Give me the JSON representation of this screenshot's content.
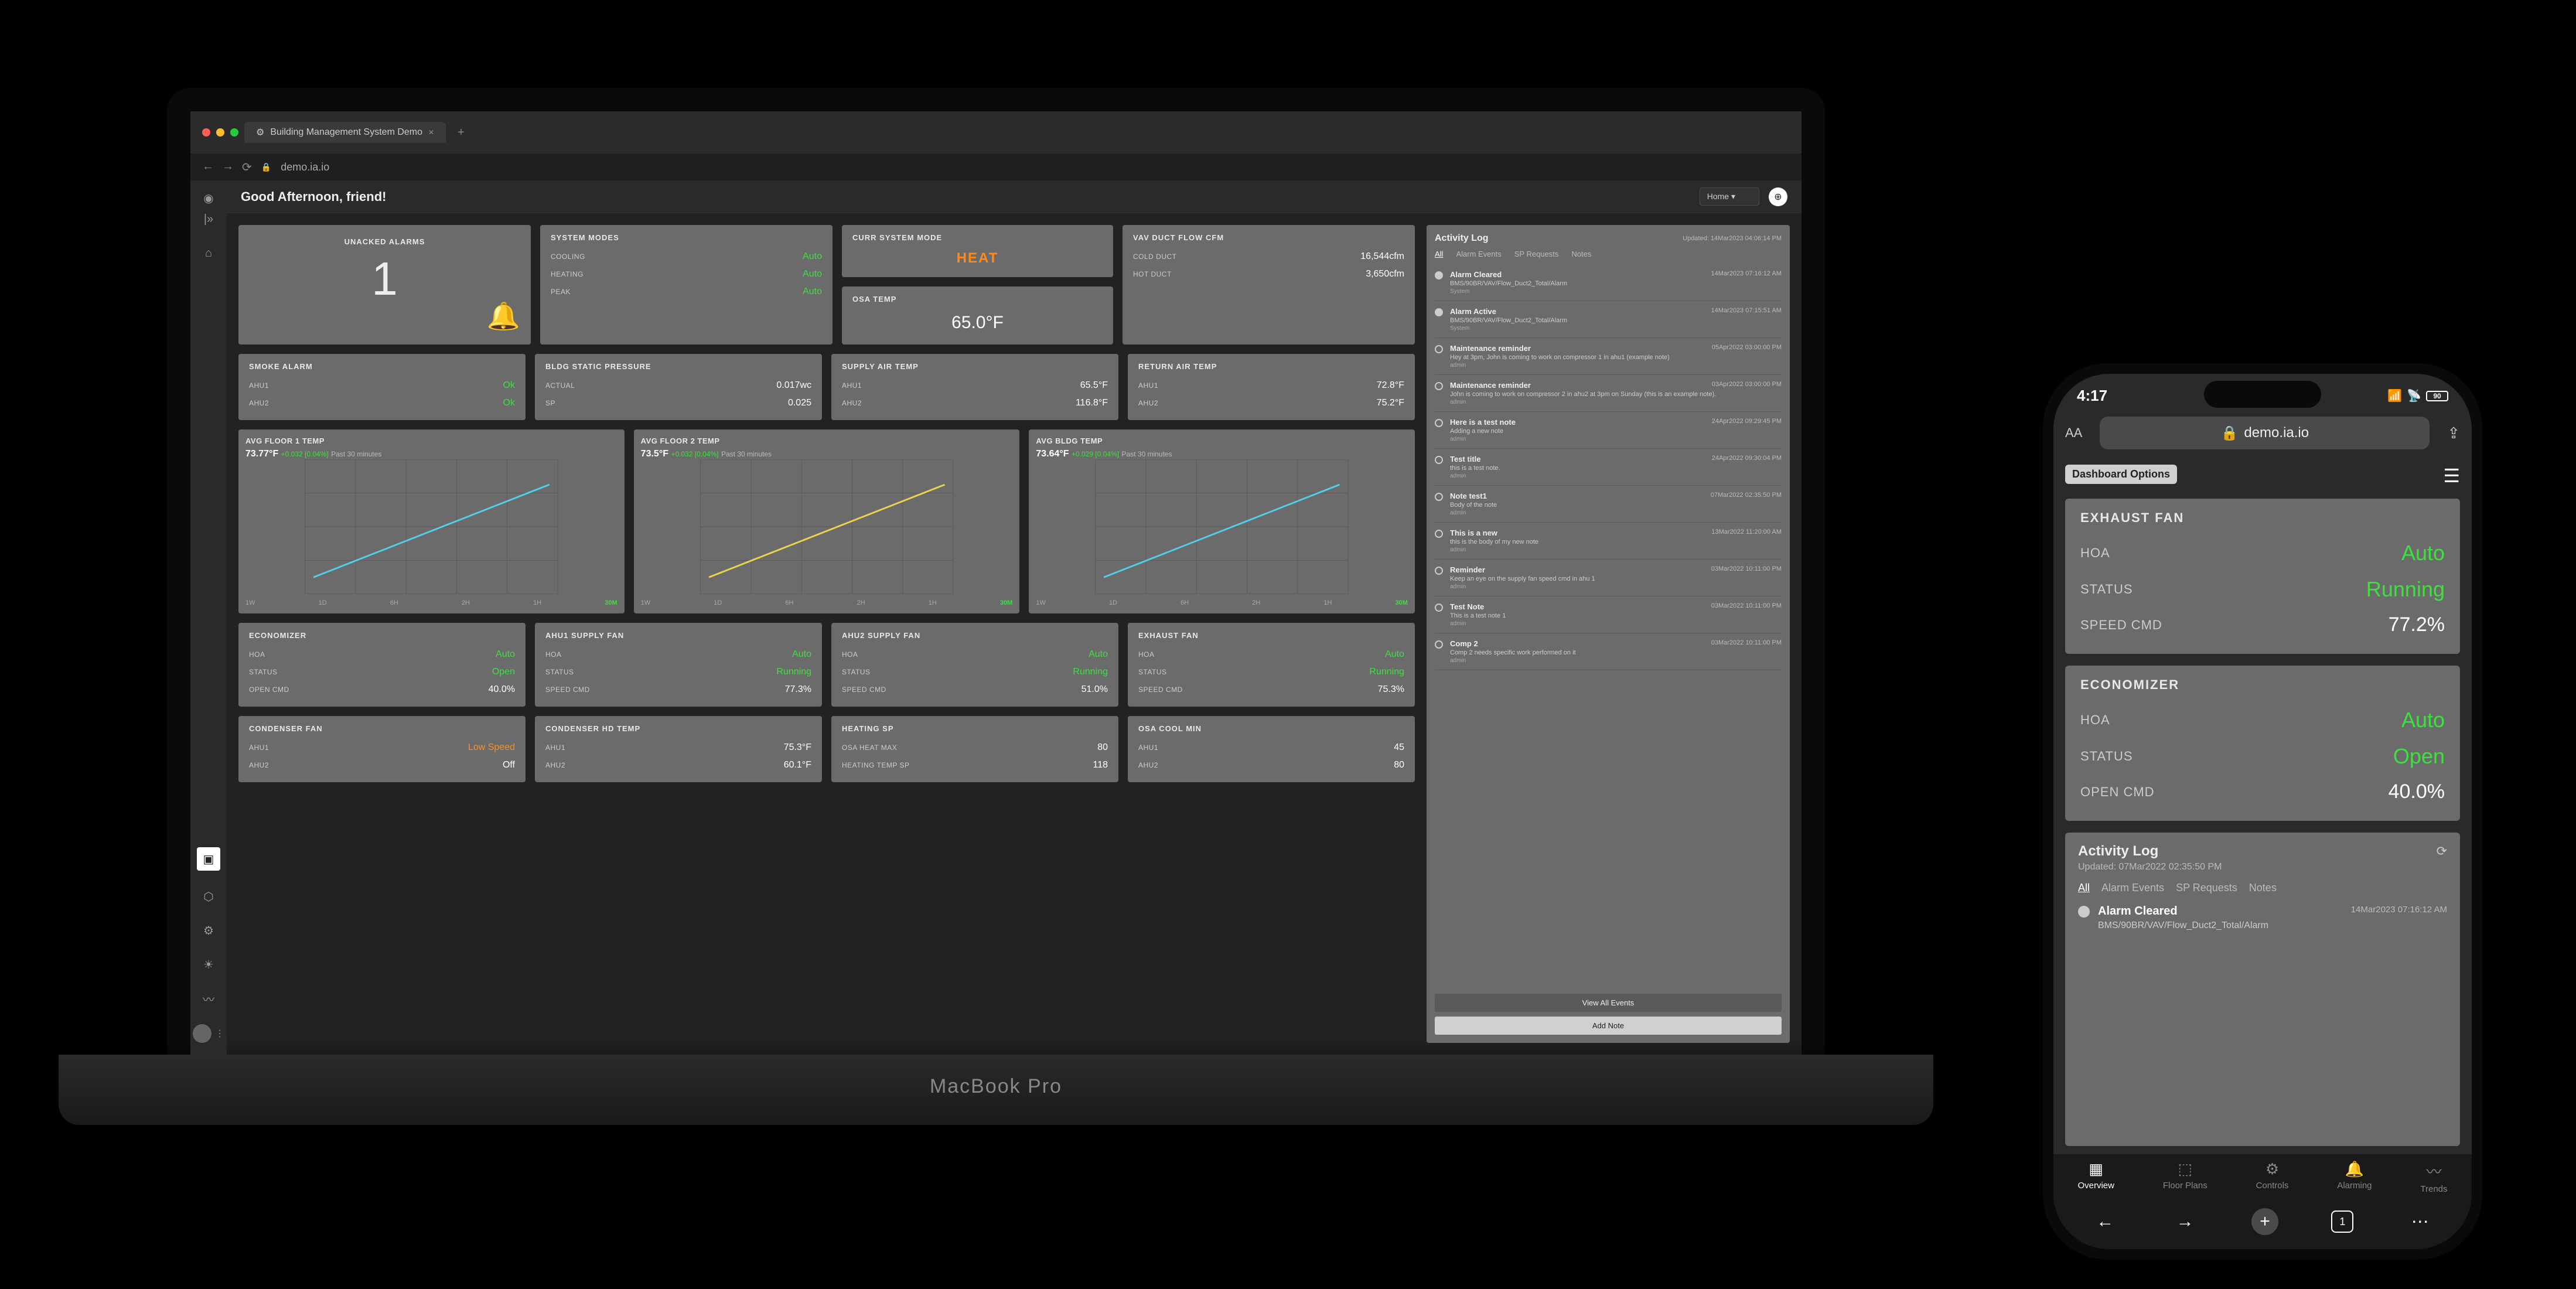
{
  "browser": {
    "tab_title": "Building Management System Demo",
    "url": "demo.ia.io"
  },
  "topbar": {
    "greeting": "Good Afternoon, friend!",
    "selector": "Home"
  },
  "unacked": {
    "title": "UNACKED ALARMS",
    "count": "1"
  },
  "system_modes": {
    "title": "SYSTEM MODES",
    "rows": [
      {
        "k": "COOLING",
        "v": "Auto"
      },
      {
        "k": "HEATING",
        "v": "Auto"
      },
      {
        "k": "PEAK",
        "v": "Auto"
      }
    ]
  },
  "curr_mode": {
    "title": "CURR SYSTEM MODE",
    "value": "HEAT"
  },
  "osa": {
    "title": "OSA TEMP",
    "value": "65.0°F"
  },
  "vav_cfm": {
    "title": "VAV DUCT FLOW CFM",
    "rows": [
      {
        "k": "COLD DUCT",
        "v": "16,544cfm"
      },
      {
        "k": "HOT DUCT",
        "v": "3,650cfm"
      }
    ]
  },
  "smoke": {
    "title": "SMOKE ALARM",
    "rows": [
      {
        "k": "AHU1",
        "v": "Ok"
      },
      {
        "k": "AHU2",
        "v": "Ok"
      }
    ]
  },
  "bldg_static": {
    "title": "BLDG STATIC PRESSURE",
    "rows": [
      {
        "k": "ACTUAL",
        "v": "0.017wc"
      },
      {
        "k": "SP",
        "v": "0.025"
      }
    ]
  },
  "supply_temp": {
    "title": "SUPPLY AIR TEMP",
    "rows": [
      {
        "k": "AHU1",
        "v": "65.5°F"
      },
      {
        "k": "AHU2",
        "v": "116.8°F"
      }
    ]
  },
  "return_temp": {
    "title": "RETURN AIR TEMP",
    "rows": [
      {
        "k": "AHU1",
        "v": "72.8°F"
      },
      {
        "k": "AHU2",
        "v": "75.2°F"
      }
    ]
  },
  "charts": [
    {
      "title": "AVG FLOOR 1 TEMP",
      "value": "73.77°F",
      "delta": "+0.032 [0.04%]",
      "sub": "Past 30 minutes",
      "type": "line",
      "color": "#4fcfe8",
      "grid_color": "#555",
      "bg": "#6b6b6b",
      "points": [
        [
          0,
          72
        ],
        [
          1,
          73.77
        ]
      ],
      "ylim": [
        60,
        80
      ],
      "xticks": [
        "1W",
        "1D",
        "6H",
        "2H",
        "1H",
        "30M"
      ],
      "active_tick": "30M"
    },
    {
      "title": "AVG FLOOR 2 TEMP",
      "value": "73.5°F",
      "delta": "+0.032 [0.04%]",
      "sub": "Past 30 minutes",
      "type": "line",
      "color": "#e8d44f",
      "grid_color": "#555",
      "bg": "#6b6b6b",
      "points": [
        [
          0,
          71.8
        ],
        [
          1,
          73.5
        ]
      ],
      "ylim": [
        60,
        80
      ],
      "xticks": [
        "1W",
        "1D",
        "6H",
        "2H",
        "1H",
        "30M"
      ],
      "active_tick": "30M"
    },
    {
      "title": "AVG BLDG TEMP",
      "value": "73.64°F",
      "delta": "+0.029 [0.04%]",
      "sub": "Past 30 minutes",
      "type": "line",
      "color": "#4fcfe8",
      "grid_color": "#555",
      "bg": "#6b6b6b",
      "points": [
        [
          0,
          72
        ],
        [
          1,
          73.64
        ]
      ],
      "ylim": [
        60,
        80
      ],
      "xticks": [
        "1W",
        "1D",
        "6H",
        "2H",
        "1H",
        "30M"
      ],
      "active_tick": "30M"
    }
  ],
  "economizer": {
    "title": "ECONOMIZER",
    "rows": [
      {
        "k": "HOA",
        "v": "Auto",
        "c": "green"
      },
      {
        "k": "STATUS",
        "v": "Open",
        "c": "green"
      },
      {
        "k": "OPEN CMD",
        "v": "40.0%",
        "c": "white"
      }
    ]
  },
  "ahu1_supply": {
    "title": "AHU1 SUPPLY FAN",
    "rows": [
      {
        "k": "HOA",
        "v": "Auto",
        "c": "green"
      },
      {
        "k": "STATUS",
        "v": "Running",
        "c": "green"
      },
      {
        "k": "SPEED CMD",
        "v": "77.3%",
        "c": "white"
      }
    ]
  },
  "ahu2_supply": {
    "title": "AHU2 SUPPLY FAN",
    "rows": [
      {
        "k": "HOA",
        "v": "Auto",
        "c": "green"
      },
      {
        "k": "STATUS",
        "v": "Running",
        "c": "green"
      },
      {
        "k": "SPEED CMD",
        "v": "51.0%",
        "c": "white"
      }
    ]
  },
  "exhaust": {
    "title": "EXHAUST FAN",
    "rows": [
      {
        "k": "HOA",
        "v": "Auto",
        "c": "green"
      },
      {
        "k": "STATUS",
        "v": "Running",
        "c": "green"
      },
      {
        "k": "SPEED CMD",
        "v": "75.3%",
        "c": "white"
      }
    ]
  },
  "condenser": {
    "title": "CONDENSER FAN",
    "rows": [
      {
        "k": "AHU1",
        "v": "Low Speed",
        "c": "orange"
      },
      {
        "k": "AHU2",
        "v": "Off",
        "c": "white"
      }
    ]
  },
  "condenser_hd": {
    "title": "CONDENSER HD TEMP",
    "rows": [
      {
        "k": "AHU1",
        "v": "75.3°F",
        "c": "white"
      },
      {
        "k": "AHU2",
        "v": "60.1°F",
        "c": "white"
      }
    ]
  },
  "heating_sp": {
    "title": "HEATING SP",
    "rows": [
      {
        "k": "OSA HEAT MAX",
        "v": "80",
        "c": "white"
      },
      {
        "k": "HEATING TEMP SP",
        "v": "118",
        "c": "white"
      }
    ]
  },
  "osa_cool": {
    "title": "OSA COOL MIN",
    "rows": [
      {
        "k": "AHU1",
        "v": "45",
        "c": "white"
      },
      {
        "k": "AHU2",
        "v": "80",
        "c": "white"
      }
    ]
  },
  "activity": {
    "title": "Activity Log",
    "updated": "Updated: 14Mar2023 04:06:14 PM",
    "tabs": [
      "All",
      "Alarm Events",
      "SP Requests",
      "Notes"
    ],
    "active_tab": "All",
    "items": [
      {
        "title": "Alarm Cleared",
        "time": "14Mar2023 07:16:12 AM",
        "sub": "BMS/90BR/VAV/Flow_Duct2_Total/Alarm",
        "author": "System",
        "filled": true
      },
      {
        "title": "Alarm Active",
        "time": "14Mar2023 07:15:51 AM",
        "sub": "BMS/90BR/VAV/Flow_Duct2_Total/Alarm",
        "author": "System",
        "filled": true
      },
      {
        "title": "Maintenance reminder",
        "time": "05Apr2022 03:00:00 PM",
        "sub": "Hey at 3pm, John is coming to work on compressor 1 in ahu1 (example note)",
        "author": "admin",
        "filled": false
      },
      {
        "title": "Maintenance reminder",
        "time": "03Apr2022 03:00:00 PM",
        "sub": "John is coming to work on compressor 2 in ahu2 at 3pm on Sunday (this is an example note).",
        "author": "admin",
        "filled": false
      },
      {
        "title": "Here is a test note",
        "time": "24Apr2022 09:29:45 PM",
        "sub": "Adding a new note",
        "author": "admin",
        "filled": false
      },
      {
        "title": "Test title",
        "time": "24Apr2022 09:30:04 PM",
        "sub": "this is a test note.",
        "author": "admin",
        "filled": false
      },
      {
        "title": "Note test1",
        "time": "07Mar2022 02:35:50 PM",
        "sub": "Body of the note",
        "author": "admin",
        "filled": false
      },
      {
        "title": "This is a new",
        "time": "13Mar2022 11:20:00 AM",
        "sub": "this is the body of my new note",
        "author": "admin",
        "filled": false
      },
      {
        "title": "Reminder",
        "time": "03Mar2022 10:11:00 PM",
        "sub": "Keep an eye on the supply fan speed cmd in ahu 1",
        "author": "admin",
        "filled": false
      },
      {
        "title": "Test Note",
        "time": "03Mar2022 10:11:00 PM",
        "sub": "This is a test note 1",
        "author": "admin",
        "filled": false
      },
      {
        "title": "Comp 2",
        "time": "03Mar2022 10:11:00 PM",
        "sub": "Comp 2 needs specific work performed on it",
        "author": "admin",
        "filled": false
      }
    ],
    "view_all": "View All Events",
    "add_note": "Add Note"
  },
  "phone": {
    "time": "4:17",
    "battery": "90",
    "url": "demo.ia.io",
    "dash_options": "Dashboard Options",
    "exhaust": {
      "title": "EXHAUST FAN",
      "rows": [
        {
          "k": "HOA",
          "v": "Auto",
          "c": "green"
        },
        {
          "k": "STATUS",
          "v": "Running",
          "c": "green"
        },
        {
          "k": "SPEED CMD",
          "v": "77.2%",
          "c": "white"
        }
      ]
    },
    "economizer": {
      "title": "ECONOMIZER",
      "rows": [
        {
          "k": "HOA",
          "v": "Auto",
          "c": "green"
        },
        {
          "k": "STATUS",
          "v": "Open",
          "c": "green"
        },
        {
          "k": "OPEN CMD",
          "v": "40.0%",
          "c": "white"
        }
      ]
    },
    "activity": {
      "title": "Activity Log",
      "updated": "Updated: 07Mar2022 02:35:50 PM",
      "tabs": [
        "All",
        "Alarm Events",
        "SP Requests",
        "Notes"
      ],
      "item": {
        "title": "Alarm Cleared",
        "time": "14Mar2023 07:16:12 AM",
        "sub": "BMS/90BR/VAV/Flow_Duct2_Total/Alarm"
      }
    },
    "tabs": [
      "Overview",
      "Floor Plans",
      "Controls",
      "Alarming",
      "Trends"
    ],
    "active_tab": "Overview"
  },
  "macbook_brand": "MacBook Pro"
}
